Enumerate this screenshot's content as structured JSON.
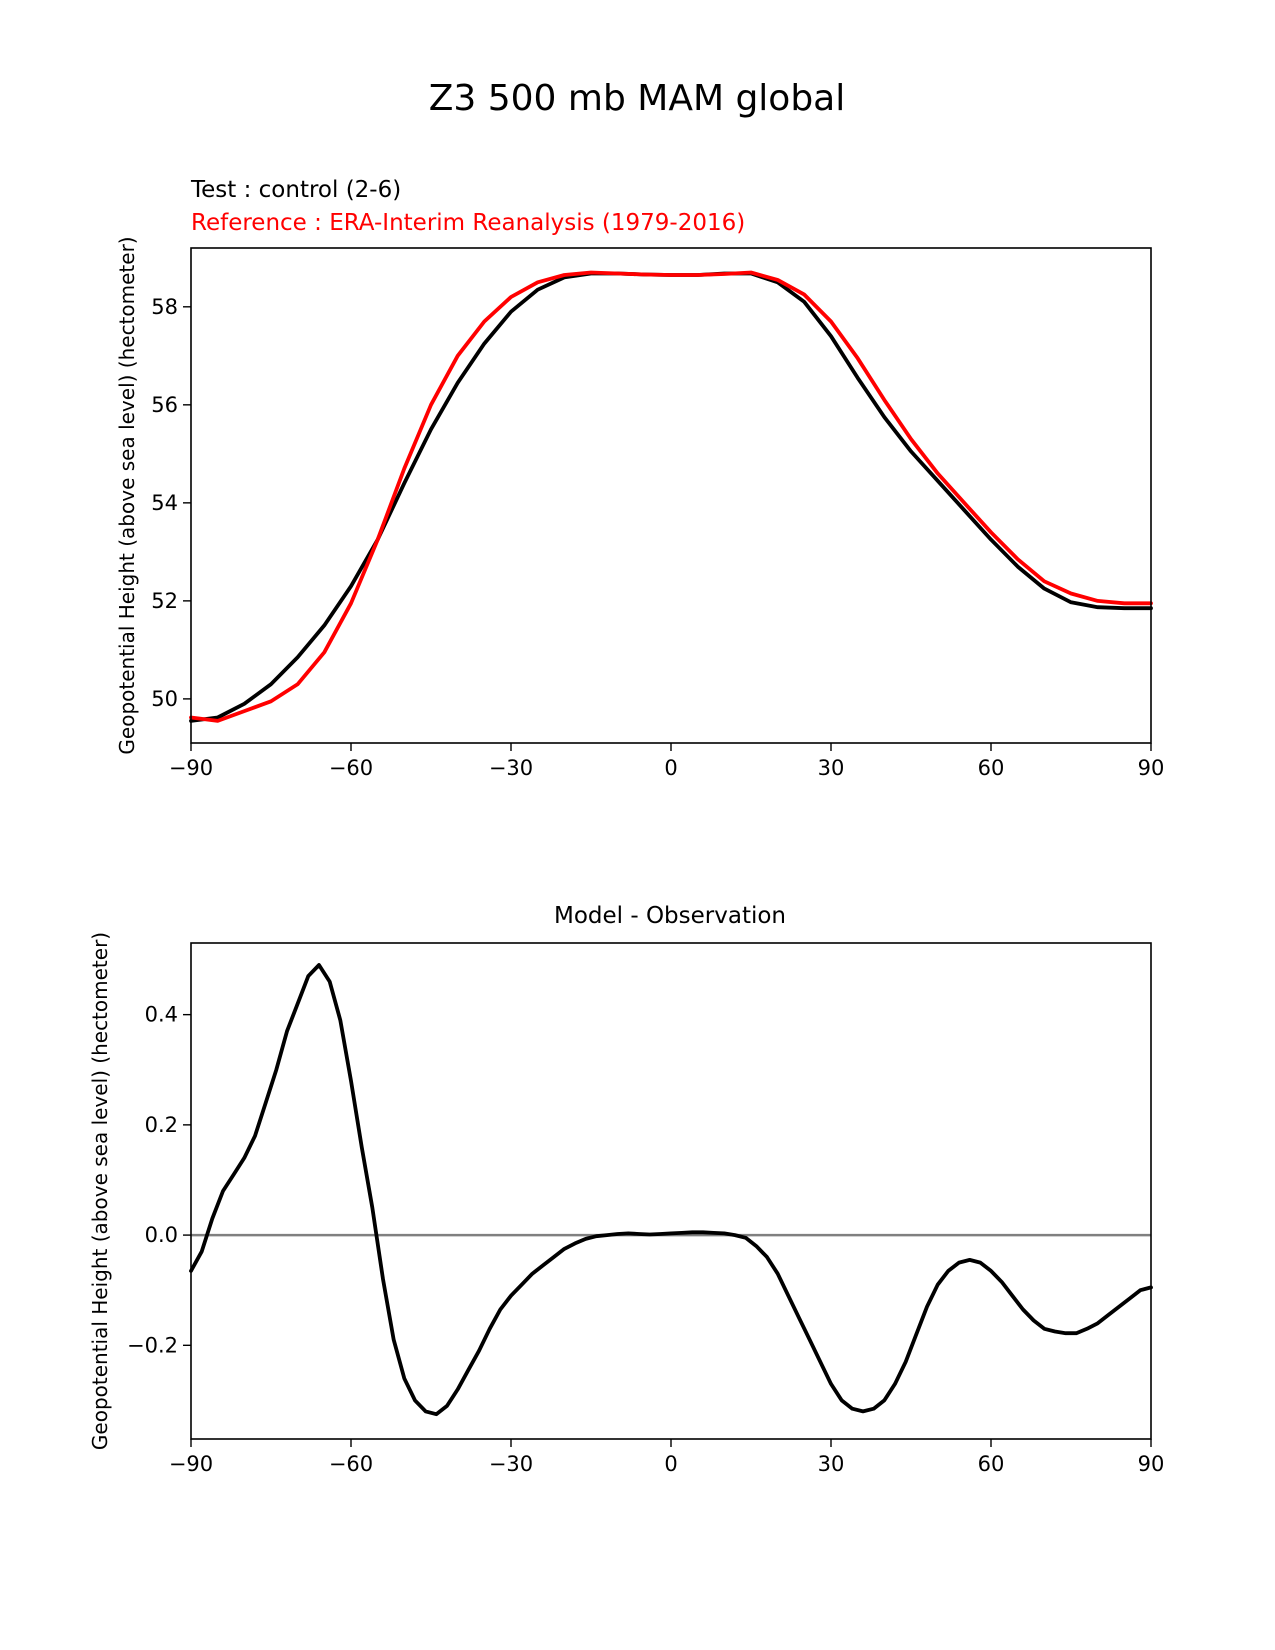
{
  "title": "Z3 500 mb MAM global",
  "colors": {
    "test": "#000000",
    "reference": "#ff0000",
    "zero_line": "#808080"
  },
  "chart_data": [
    {
      "type": "line",
      "test_label": "Test : control (2-6)",
      "reference_label": "Reference : ERA-Interim Reanalysis (1979-2016)",
      "ylabel": "Geopotential Height (above sea level) (hectometer)",
      "xlabel": "",
      "xlim": [
        -90,
        90
      ],
      "ylim": [
        49.1,
        59.2
      ],
      "xticks": [
        "−90",
        "−60",
        "−30",
        "0",
        "30",
        "60",
        "90"
      ],
      "yticks": [
        "50",
        "52",
        "54",
        "56",
        "58"
      ],
      "series": [
        {
          "name": "Test : control (2-6)",
          "color": "#000000",
          "x": [
            -90,
            -85,
            -80,
            -75,
            -70,
            -65,
            -60,
            -55,
            -50,
            -45,
            -40,
            -35,
            -30,
            -25,
            -20,
            -15,
            -10,
            -5,
            0,
            5,
            10,
            15,
            20,
            25,
            30,
            35,
            40,
            45,
            50,
            55,
            60,
            65,
            70,
            75,
            80,
            85,
            90
          ],
          "y": [
            49.55,
            49.62,
            49.9,
            50.3,
            50.85,
            51.5,
            52.3,
            53.25,
            54.4,
            55.5,
            56.45,
            57.25,
            57.9,
            58.35,
            58.6,
            58.68,
            58.68,
            58.66,
            58.65,
            58.65,
            58.68,
            58.68,
            58.5,
            58.1,
            57.4,
            56.55,
            55.75,
            55.05,
            54.45,
            53.85,
            53.25,
            52.7,
            52.25,
            51.97,
            51.87,
            51.85,
            51.85
          ]
        },
        {
          "name": "Reference : ERA-Interim Reanalysis (1979-2016)",
          "color": "#ff0000",
          "x": [
            -90,
            -85,
            -80,
            -75,
            -70,
            -65,
            -60,
            -55,
            -50,
            -45,
            -40,
            -35,
            -30,
            -25,
            -20,
            -15,
            -10,
            -5,
            0,
            5,
            10,
            15,
            20,
            25,
            30,
            35,
            40,
            45,
            50,
            55,
            60,
            65,
            70,
            75,
            80,
            85,
            90
          ],
          "y": [
            49.62,
            49.55,
            49.75,
            49.95,
            50.3,
            50.95,
            51.95,
            53.25,
            54.7,
            56.0,
            57.0,
            57.7,
            58.2,
            58.5,
            58.65,
            58.7,
            58.68,
            58.66,
            58.65,
            58.65,
            58.67,
            58.7,
            58.55,
            58.25,
            57.7,
            56.95,
            56.1,
            55.3,
            54.6,
            54.0,
            53.4,
            52.85,
            52.4,
            52.15,
            52.0,
            51.95,
            51.95
          ]
        }
      ]
    },
    {
      "type": "line",
      "title": "Model - Observation",
      "ylabel": "Geopotential Height (above sea level) (hectometer)",
      "xlabel": "",
      "xlim": [
        -90,
        90
      ],
      "ylim": [
        -0.37,
        0.53
      ],
      "xticks": [
        "−90",
        "−60",
        "−30",
        "0",
        "30",
        "60",
        "90"
      ],
      "yticks": [
        "−0.2",
        "0.0",
        "0.2",
        "0.4"
      ],
      "zero_line": 0,
      "series": [
        {
          "name": "",
          "color": "#000000",
          "x": [
            -90,
            -88,
            -86,
            -84,
            -82,
            -80,
            -78,
            -76,
            -74,
            -72,
            -70,
            -68,
            -66,
            -64,
            -62,
            -60,
            -58,
            -56,
            -54,
            -52,
            -50,
            -48,
            -46,
            -44,
            -42,
            -40,
            -38,
            -36,
            -34,
            -32,
            -30,
            -28,
            -26,
            -24,
            -22,
            -20,
            -18,
            -16,
            -14,
            -12,
            -10,
            -8,
            -6,
            -4,
            -2,
            0,
            2,
            4,
            6,
            8,
            10,
            12,
            14,
            16,
            18,
            20,
            22,
            24,
            26,
            28,
            30,
            32,
            34,
            36,
            38,
            40,
            42,
            44,
            46,
            48,
            50,
            52,
            54,
            56,
            58,
            60,
            62,
            64,
            66,
            68,
            70,
            72,
            74,
            76,
            78,
            80,
            82,
            84,
            86,
            88,
            90
          ],
          "y": [
            -0.065,
            -0.03,
            0.03,
            0.08,
            0.11,
            0.14,
            0.18,
            0.24,
            0.3,
            0.37,
            0.42,
            0.47,
            0.49,
            0.46,
            0.39,
            0.28,
            0.16,
            0.05,
            -0.08,
            -0.19,
            -0.26,
            -0.3,
            -0.32,
            -0.325,
            -0.31,
            -0.28,
            -0.245,
            -0.21,
            -0.17,
            -0.135,
            -0.11,
            -0.09,
            -0.07,
            -0.055,
            -0.04,
            -0.025,
            -0.015,
            -0.007,
            -0.002,
            0.0,
            0.002,
            0.003,
            0.002,
            0.001,
            0.002,
            0.003,
            0.004,
            0.005,
            0.005,
            0.004,
            0.003,
            0.0,
            -0.005,
            -0.02,
            -0.04,
            -0.07,
            -0.11,
            -0.15,
            -0.19,
            -0.23,
            -0.27,
            -0.3,
            -0.315,
            -0.32,
            -0.315,
            -0.3,
            -0.27,
            -0.23,
            -0.18,
            -0.13,
            -0.09,
            -0.065,
            -0.05,
            -0.045,
            -0.05,
            -0.065,
            -0.085,
            -0.11,
            -0.135,
            -0.155,
            -0.17,
            -0.175,
            -0.178,
            -0.178,
            -0.17,
            -0.16,
            -0.145,
            -0.13,
            -0.115,
            -0.1,
            -0.095
          ]
        }
      ]
    }
  ]
}
